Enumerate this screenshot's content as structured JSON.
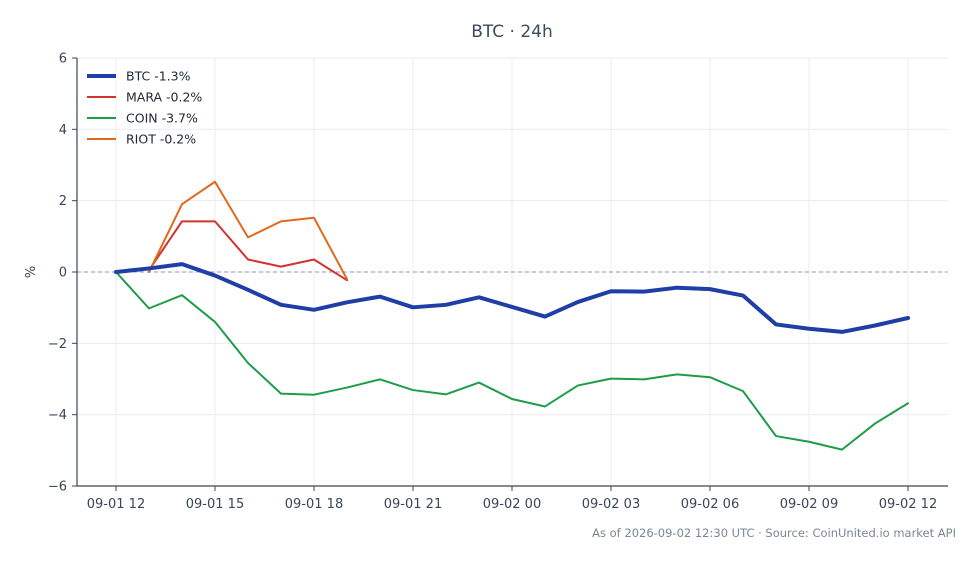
{
  "chart_data": {
    "type": "line",
    "title": "BTC · 24h",
    "xlabel": "",
    "ylabel": "%",
    "ylim": [
      -6,
      6
    ],
    "yticks": [
      -6,
      -4,
      -2,
      0,
      2,
      4,
      6
    ],
    "ytick_labels": [
      "−6",
      "−4",
      "−2",
      "0",
      "2",
      "4",
      "6"
    ],
    "x": [
      "09-01 12",
      "09-01 13",
      "09-01 14",
      "09-01 15",
      "09-01 16",
      "09-01 17",
      "09-01 18",
      "09-01 19",
      "09-01 20",
      "09-01 21",
      "09-01 22",
      "09-01 23",
      "09-02 00",
      "09-02 01",
      "09-02 02",
      "09-02 03",
      "09-02 04",
      "09-02 05",
      "09-02 06",
      "09-02 07",
      "09-02 08",
      "09-02 09",
      "09-02 10",
      "09-02 11",
      "09-02 12"
    ],
    "xticks": [
      "09-01 12",
      "09-01 15",
      "09-01 18",
      "09-01 21",
      "09-02 00",
      "09-02 03",
      "09-02 06",
      "09-02 09",
      "09-02 12"
    ],
    "zero_line": true,
    "grid": true,
    "legend_position": "top-left",
    "series": [
      {
        "name": "BTC -1.3%",
        "color": "#1f3fa6",
        "width": 4,
        "values": [
          0.0,
          0.1,
          0.22,
          -0.1,
          -0.5,
          -0.92,
          -1.06,
          -0.85,
          -0.69,
          -0.99,
          -0.92,
          -0.71,
          -0.98,
          -1.25,
          -0.84,
          -0.54,
          -0.55,
          -0.44,
          -0.48,
          -0.66,
          -1.47,
          -1.59,
          -1.68,
          -1.5,
          -1.29
        ]
      },
      {
        "name": "MARA -0.2%",
        "color": "#d0342c",
        "width": 2,
        "values": [
          null,
          0.05,
          1.42,
          1.42,
          0.35,
          0.15,
          0.35,
          -0.23,
          null,
          null,
          null,
          null,
          null,
          null,
          null,
          null,
          null,
          null,
          null,
          null,
          null,
          null,
          null,
          null,
          null
        ]
      },
      {
        "name": "COIN -3.7%",
        "color": "#1e9c4a",
        "width": 2,
        "values": [
          0.0,
          -1.02,
          -0.65,
          -1.4,
          -2.55,
          -3.41,
          -3.44,
          -3.24,
          -3.01,
          -3.31,
          -3.43,
          -3.1,
          -3.56,
          -3.77,
          -3.18,
          -2.99,
          -3.01,
          -2.87,
          -2.95,
          -3.34,
          -4.6,
          -4.76,
          -4.98,
          -4.25,
          -3.68
        ]
      },
      {
        "name": "RIOT -0.2%",
        "color": "#e06a1c",
        "width": 2,
        "values": [
          null,
          0.0,
          1.9,
          2.53,
          0.97,
          1.42,
          1.52,
          -0.2,
          null,
          null,
          null,
          null,
          null,
          null,
          null,
          null,
          null,
          null,
          null,
          null,
          null,
          null,
          null,
          null,
          null
        ]
      }
    ],
    "footer": "As of 2026-09-02 12:30 UTC · Source: CoinUnited.io market API"
  }
}
